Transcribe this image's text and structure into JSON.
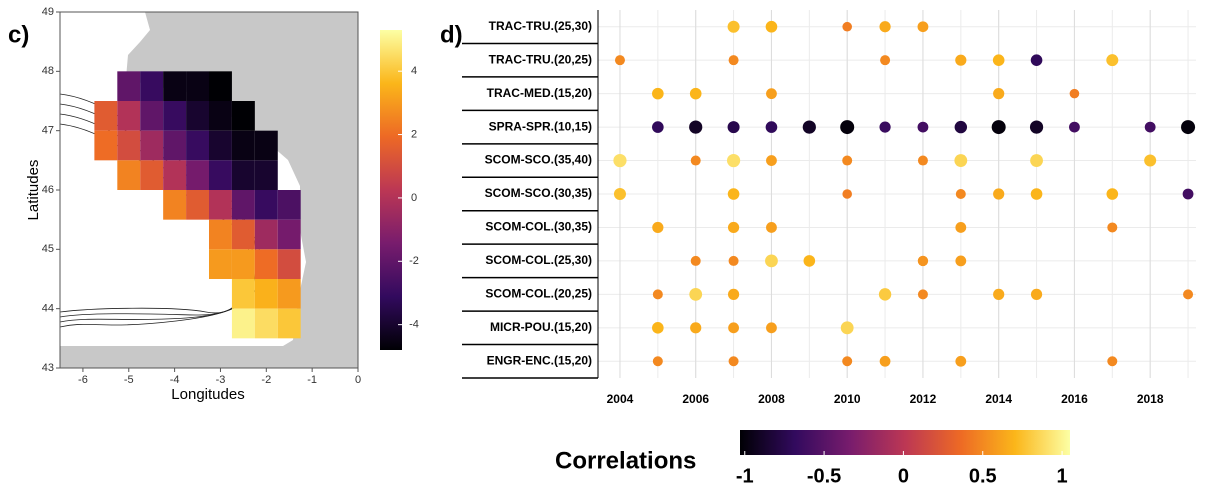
{
  "chart_data": [
    {
      "type": "heatmap",
      "panel_label": "c)",
      "xlabel": "Longitudes",
      "ylabel": "Latitudes",
      "xlim": [
        -6.5,
        0
      ],
      "ylim": [
        43,
        49
      ],
      "xticks": [
        -6,
        -5,
        -4,
        -3,
        -2,
        -1,
        0
      ],
      "yticks": [
        43,
        44,
        45,
        46,
        47,
        48,
        49
      ],
      "clim": [
        -4.8,
        5.3
      ],
      "cticks": [
        -4,
        -2,
        0,
        2,
        4
      ],
      "colormap": [
        "#000004",
        "#320a5e",
        "#781c6d",
        "#bc3754",
        "#ed6925",
        "#fbb61a",
        "#fcffa4"
      ],
      "lon": [
        -5,
        -4.5,
        -4,
        -3.5,
        -3,
        -5.5,
        -5,
        -4.5,
        -4,
        -3.5,
        -3,
        -2.5,
        -5.5,
        -5,
        -4.5,
        -4,
        -3.5,
        -3,
        -2.5,
        -2,
        -5,
        -4.5,
        -4,
        -3.5,
        -3,
        -2.5,
        -2,
        -4,
        -3.5,
        -3,
        -2.5,
        -2,
        -1.5,
        -3,
        -2.5,
        -2,
        -1.5,
        -3,
        -2.5,
        -2,
        -1.5,
        -2.5,
        -2,
        -1.5,
        -2.5,
        -2,
        -1.5
      ],
      "lat": [
        47.75,
        47.75,
        47.75,
        47.75,
        47.75,
        47.25,
        47.25,
        47.25,
        47.25,
        47.25,
        47.25,
        47.25,
        46.75,
        46.75,
        46.75,
        46.75,
        46.75,
        46.75,
        46.75,
        46.75,
        46.25,
        46.25,
        46.25,
        46.25,
        46.25,
        46.25,
        46.25,
        45.75,
        45.75,
        45.75,
        45.75,
        45.75,
        45.75,
        45.25,
        45.25,
        45.25,
        45.25,
        44.75,
        44.75,
        44.75,
        44.75,
        44.25,
        44.25,
        44.25,
        43.75,
        43.75,
        43.75
      ],
      "values": [
        -2,
        -3,
        -4.5,
        -4.5,
        -4.8,
        1.5,
        0,
        -2,
        -3,
        -4,
        -4.5,
        -4.8,
        2,
        1,
        -0.5,
        -2,
        -3,
        -4,
        -4.5,
        -4.5,
        2.5,
        1.5,
        0,
        -1.5,
        -3,
        -4,
        -4,
        2.5,
        1.5,
        0,
        -2,
        -3,
        -2.5,
        2.5,
        1.5,
        -0.5,
        -1.5,
        3,
        3,
        2,
        1,
        4,
        3.5,
        3,
        5,
        4.5,
        4
      ]
    },
    {
      "type": "dot",
      "panel_label": "d)",
      "colorbar_label": "Correlations",
      "xlim": [
        2003.42,
        2019.21
      ],
      "xticks": [
        2004,
        2006,
        2008,
        2010,
        2012,
        2014,
        2016,
        2018
      ],
      "clim": [
        -1.03,
        1.05
      ],
      "cticks": [
        -1,
        -0.5,
        0,
        0.5,
        1
      ],
      "colormap": [
        "#000004",
        "#320a5e",
        "#781c6d",
        "#bc3754",
        "#ed6925",
        "#fbb61a",
        "#fcffa4"
      ],
      "series": [
        {
          "name": "TRAC-TRU.(25,30)",
          "x": [
            2007,
            2008,
            2010,
            2011,
            2012
          ],
          "values": [
            0.75,
            0.7,
            0.45,
            0.65,
            0.6
          ]
        },
        {
          "name": "TRAC-TRU.(20,25)",
          "x": [
            2004,
            2007,
            2011,
            2013,
            2014,
            2015,
            2017
          ],
          "values": [
            0.5,
            0.5,
            0.5,
            0.65,
            0.7,
            -0.7,
            0.75
          ]
        },
        {
          "name": "TRAC-MED.(15,20)",
          "x": [
            2005,
            2006,
            2008,
            2014,
            2016
          ],
          "values": [
            0.7,
            0.7,
            0.6,
            0.65,
            0.45
          ]
        },
        {
          "name": "SPRA-SPR.(10,15)",
          "x": [
            2005,
            2006,
            2007,
            2008,
            2009,
            2010,
            2011,
            2012,
            2013,
            2014,
            2015,
            2016,
            2018,
            2019
          ],
          "values": [
            -0.7,
            -0.9,
            -0.75,
            -0.7,
            -0.9,
            -1,
            -0.65,
            -0.6,
            -0.8,
            -1,
            -0.9,
            -0.6,
            -0.6,
            -1
          ]
        },
        {
          "name": "SCOM-SCO.(35,40)",
          "x": [
            2004,
            2006,
            2007,
            2008,
            2010,
            2012,
            2013,
            2015,
            2018
          ],
          "values": [
            0.9,
            0.5,
            0.9,
            0.6,
            0.5,
            0.5,
            0.85,
            0.85,
            0.75
          ]
        },
        {
          "name": "SCOM-SCO.(30,35)",
          "x": [
            2004,
            2007,
            2010,
            2013,
            2014,
            2015,
            2017,
            2019
          ],
          "values": [
            0.75,
            0.7,
            0.45,
            0.5,
            0.65,
            0.7,
            0.7,
            -0.6
          ]
        },
        {
          "name": "SCOM-COL.(30,35)",
          "x": [
            2005,
            2007,
            2008,
            2013,
            2017
          ],
          "values": [
            0.65,
            0.65,
            0.6,
            0.6,
            0.5
          ]
        },
        {
          "name": "SCOM-COL.(25,30)",
          "x": [
            2006,
            2007,
            2008,
            2009,
            2012,
            2013
          ],
          "values": [
            0.5,
            0.5,
            0.85,
            0.7,
            0.55,
            0.6
          ]
        },
        {
          "name": "SCOM-COL.(20,25)",
          "x": [
            2005,
            2006,
            2007,
            2011,
            2012,
            2014,
            2015,
            2019
          ],
          "values": [
            0.5,
            0.85,
            0.65,
            0.8,
            0.5,
            0.65,
            0.65,
            0.5
          ]
        },
        {
          "name": "MICR-POU.(15,20)",
          "x": [
            2005,
            2006,
            2007,
            2008,
            2010
          ],
          "values": [
            0.7,
            0.65,
            0.6,
            0.6,
            0.85
          ]
        },
        {
          "name": "ENGR-ENC.(15,20)",
          "x": [
            2005,
            2007,
            2010,
            2011,
            2013,
            2017
          ],
          "values": [
            0.5,
            0.5,
            0.5,
            0.6,
            0.6,
            0.5
          ]
        }
      ]
    }
  ]
}
